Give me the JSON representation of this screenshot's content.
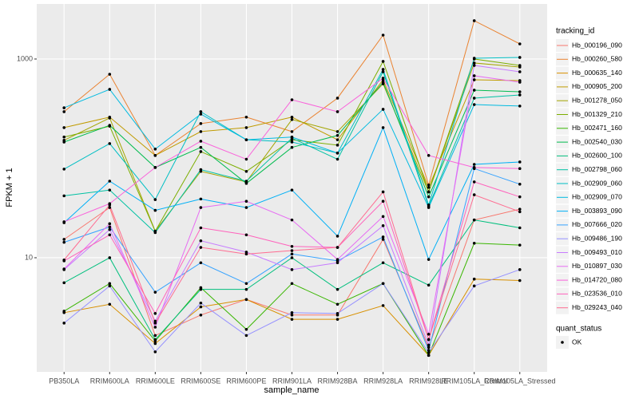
{
  "chart_data": {
    "type": "line",
    "x_label": "sample_name",
    "y_label": "FPKM + 1",
    "log_y": true,
    "grid": true,
    "legend_title": "tracking_id",
    "point_legend_title": "quant_status",
    "point_legend_label": "OK",
    "point_color": "#000000",
    "categories": [
      "PB350LA",
      "RRIM600LA",
      "RRIM600LE",
      "RRIM600SE",
      "RRIM600PE",
      "RRIM901LA",
      "RRIM928BA",
      "RRIM928LA",
      "RRIM928LE",
      "RRIM105LA_Control",
      "RRIM105LA_Stressed"
    ],
    "ylim": [
      0.71,
      3580
    ],
    "yticks": [
      10,
      1000
    ],
    "series": [
      {
        "name": "Hb_000196_090",
        "color": "#F8766D",
        "values": [
          15.3,
          32,
          1.65,
          2.65,
          3.8,
          2.65,
          2.65,
          15.3,
          1.25,
          24,
          30.8
        ]
      },
      {
        "name": "Hb_000260_580",
        "color": "#EA8331",
        "values": [
          295,
          703,
          107,
          224,
          260,
          186,
          404,
          1740,
          54,
          2430,
          1420
        ]
      },
      {
        "name": "Hb_000635_140",
        "color": "#D89000",
        "values": [
          2.8,
          3.4,
          1.37,
          3.2,
          3.8,
          2.4,
          2.4,
          3.3,
          1.04,
          6.1,
          5.9
        ]
      },
      {
        "name": "Hb_000905_200",
        "color": "#C09B00",
        "values": [
          204,
          260,
          107,
          186,
          204,
          260,
          154,
          618,
          51,
          618,
          607
        ]
      },
      {
        "name": "Hb_001278_050",
        "color": "#A3A500",
        "values": [
          152,
          255,
          18.5,
          74,
          58,
          246,
          186,
          563,
          46,
          912,
          831
        ]
      },
      {
        "name": "Hb_001329_210",
        "color": "#7CAE00",
        "values": [
          164,
          211,
          18.5,
          117,
          74,
          154,
          136,
          946,
          46,
          1000,
          862
        ]
      },
      {
        "name": "Hb_002471_160",
        "color": "#39B600",
        "values": [
          2.9,
          5.5,
          1.45,
          5.0,
          1.9,
          5.5,
          3.4,
          5.5,
          1.04,
          14,
          13.4
        ]
      },
      {
        "name": "Hb_002540_030",
        "color": "#00BB4E",
        "values": [
          146,
          215,
          81,
          129,
          56,
          129,
          170,
          585,
          41,
          486,
          468
        ]
      },
      {
        "name": "Hb_002600_100",
        "color": "#00BF7D",
        "values": [
          5.6,
          10,
          1.5,
          4.8,
          4.8,
          10,
          4.8,
          8.9,
          5.3,
          24,
          20
        ]
      },
      {
        "name": "Hb_002798_060",
        "color": "#00C1A3",
        "values": [
          42,
          48,
          17.9,
          77,
          59,
          160,
          98,
          744,
          33,
          404,
          435
        ]
      },
      {
        "name": "Hb_002909_060",
        "color": "#00BFC4",
        "values": [
          78,
          141,
          38.5,
          295,
          154,
          146,
          113,
          786,
          34,
          1019,
          1038
        ]
      },
      {
        "name": "Hb_002909_070",
        "color": "#00BAE0",
        "values": [
          323,
          495,
          124,
          279,
          154,
          164,
          113,
          312,
          32,
          348,
          336
        ]
      },
      {
        "name": "Hb_003893_090",
        "color": "#00B0F6",
        "values": [
          22.5,
          59,
          30,
          39,
          32,
          48,
          16.5,
          204,
          9.6,
          87,
          92
        ]
      },
      {
        "name": "Hb_007666_020",
        "color": "#35A2FF",
        "values": [
          14.3,
          20.4,
          4.5,
          8.9,
          5.5,
          10.9,
          9.3,
          16.2,
          1.17,
          79,
          55
        ]
      },
      {
        "name": "Hb_009486_190",
        "color": "#9590FF",
        "values": [
          2.2,
          5.2,
          1.13,
          3.5,
          1.65,
          2.8,
          2.75,
          5.5,
          1.11,
          5.2,
          7.6
        ]
      },
      {
        "name": "Hb_009493_010",
        "color": "#C77CFF",
        "values": [
          7.6,
          19.2,
          2.3,
          14.8,
          11.4,
          7.6,
          8.9,
          21,
          1.32,
          862,
          744
        ]
      },
      {
        "name": "Hb_010897_030",
        "color": "#E76BF3",
        "values": [
          7.7,
          22,
          2.0,
          32,
          37,
          24,
          9.6,
          26,
          1.7,
          678,
          585
        ]
      },
      {
        "name": "Hb_014720_080",
        "color": "#FA62DB",
        "values": [
          23,
          35,
          81,
          149,
          98,
          389,
          295,
          642,
          107,
          81,
          79
        ]
      },
      {
        "name": "Hb_023536_010",
        "color": "#FF62BC",
        "values": [
          9.3,
          17,
          2.75,
          20,
          17,
          13,
          12.7,
          37,
          1.5,
          58,
          41
        ]
      },
      {
        "name": "Hb_029243_040",
        "color": "#FF6C91",
        "values": [
          9.5,
          34,
          2.2,
          12.7,
          10.9,
          11.8,
          12.7,
          46,
          1.5,
          43,
          29
        ]
      }
    ]
  }
}
